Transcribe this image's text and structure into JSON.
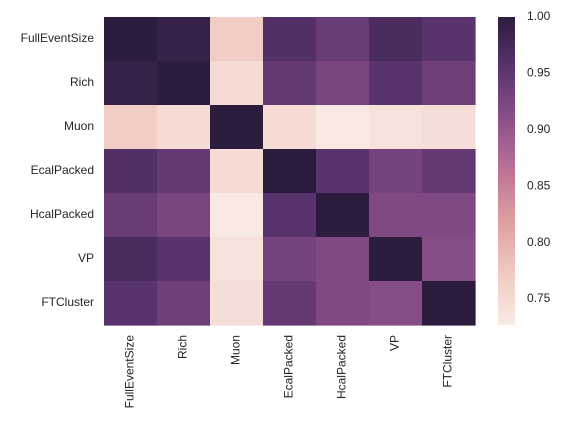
{
  "chart_data": {
    "type": "heatmap",
    "title": "",
    "xlabel": "",
    "ylabel": "",
    "rows": [
      "FullEventSize",
      "Rich",
      "Muon",
      "EcalPacked",
      "HcalPacked",
      "VP",
      "FTCluster"
    ],
    "columns": [
      "FullEventSize",
      "Rich",
      "Muon",
      "EcalPacked",
      "HcalPacked",
      "VP",
      "FTCluster"
    ],
    "values": [
      [
        1.0,
        0.99,
        0.77,
        0.96,
        0.94,
        0.97,
        0.955
      ],
      [
        0.99,
        1.0,
        0.75,
        0.945,
        0.925,
        0.955,
        0.935
      ],
      [
        0.77,
        0.75,
        1.0,
        0.75,
        0.73,
        0.74,
        0.745
      ],
      [
        0.96,
        0.945,
        0.75,
        1.0,
        0.955,
        0.93,
        0.945
      ],
      [
        0.94,
        0.925,
        0.73,
        0.955,
        1.0,
        0.92,
        0.92
      ],
      [
        0.97,
        0.955,
        0.74,
        0.93,
        0.92,
        1.0,
        0.915
      ],
      [
        0.955,
        0.935,
        0.745,
        0.945,
        0.92,
        0.915,
        1.0
      ]
    ],
    "colorbar": {
      "min": 0.727,
      "max": 1.0,
      "ticks": [
        "0.75",
        "0.80",
        "0.85",
        "0.90",
        "0.95",
        "1.00"
      ],
      "tick_values": [
        0.75,
        0.8,
        0.85,
        0.9,
        0.95,
        1.0
      ]
    },
    "colormap": [
      "#faebe5",
      "#f1cbc3",
      "#dea0a0",
      "#bc7497",
      "#8c508a",
      "#5a336e",
      "#2c1d3e"
    ]
  }
}
